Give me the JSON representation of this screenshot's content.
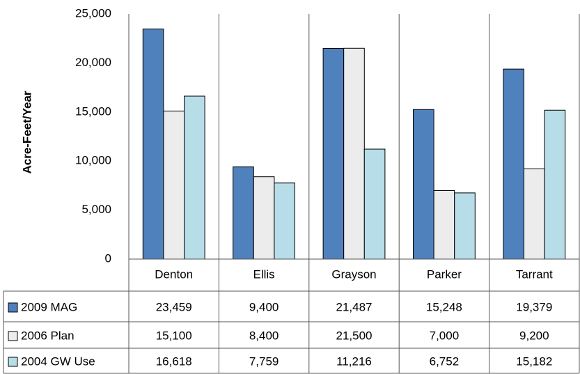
{
  "chart_data": {
    "type": "bar",
    "y_label": "Acre-Feet/Year",
    "categories": [
      "Denton",
      "Ellis",
      "Grayson",
      "Parker",
      "Tarrant"
    ],
    "series": [
      {
        "name": "2009 MAG",
        "color": "#4f81bd",
        "values": [
          23459,
          9400,
          21487,
          15248,
          19379
        ],
        "value_labels": [
          "23,459",
          "9,400",
          "21,487",
          "15,248",
          "19,379"
        ]
      },
      {
        "name": "2006 Plan",
        "color": "#ececec",
        "values": [
          15100,
          8400,
          21500,
          7000,
          9200
        ],
        "value_labels": [
          "15,100",
          "8,400",
          "21,500",
          "7,000",
          "9,200"
        ]
      },
      {
        "name": "2004 GW Use",
        "color": "#b7dde8",
        "values": [
          16618,
          7759,
          11216,
          6752,
          15182
        ],
        "value_labels": [
          "16,618",
          "7,759",
          "11,216",
          "6,752",
          "15,182"
        ]
      }
    ],
    "ylim": [
      0,
      25000
    ],
    "yticks": [
      0,
      {
        "value": 5000,
        "label": "5,000"
      },
      {
        "value": 10000,
        "label": "10,000"
      },
      {
        "value": 15000,
        "label": "15,000"
      },
      {
        "value": 20000,
        "label": "20,000"
      },
      {
        "value": 25000,
        "label": "25,000"
      }
    ],
    "grid": false
  }
}
